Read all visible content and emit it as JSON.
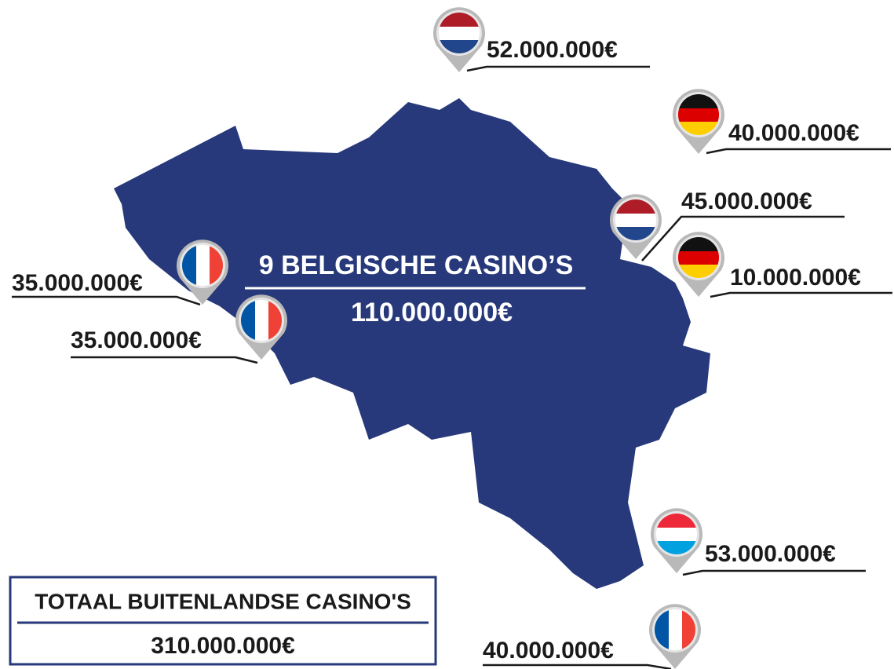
{
  "map": {
    "center": {
      "title": "9 BELGISCHE CASINO’S",
      "amount": "110.000.000€"
    },
    "markers": [
      "52.000.000€",
      "40.000.000€",
      "45.000.000€",
      "10.000.000€",
      "35.000.000€",
      "35.000.000€",
      "53.000.000€",
      "40.000.000€"
    ]
  },
  "total": {
    "title": "TOTAAL BUITENLANDSE CASINO'S",
    "amount": "310.000.000€"
  }
}
